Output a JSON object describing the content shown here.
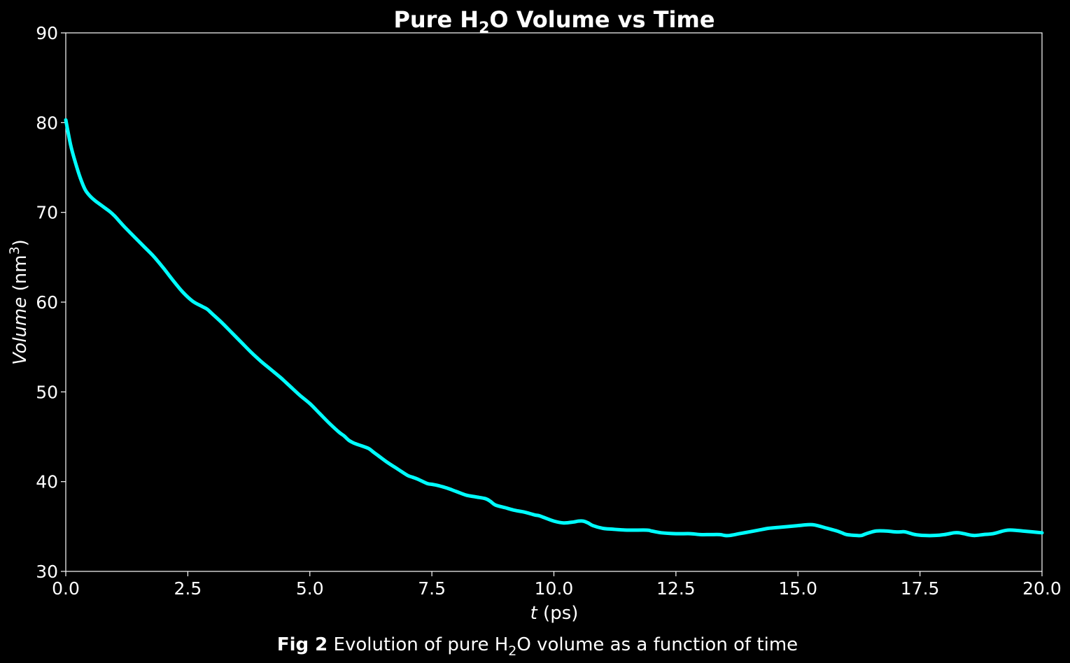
{
  "chart_data": {
    "type": "line",
    "title": {
      "prefix": "Pure H",
      "subscript": "2",
      "suffix": "O Volume vs Time"
    },
    "xlabel": {
      "italic": "t",
      "rest": " (ps)"
    },
    "ylabel": {
      "italic": "Volume",
      "rest_open": " (nm",
      "superscript": "3",
      "rest_close": ")"
    },
    "xlim": [
      0,
      20
    ],
    "ylim": [
      30,
      90
    ],
    "xticks": [
      "0.0",
      "2.5",
      "5.0",
      "7.5",
      "10.0",
      "12.5",
      "15.0",
      "17.5",
      "20.0"
    ],
    "yticks": [
      "30",
      "40",
      "50",
      "60",
      "70",
      "80",
      "90"
    ],
    "grid": false,
    "line_color": "#00ffff",
    "background_color": "#000000",
    "foreground_color": "#ffffff",
    "series": [
      {
        "x": [
          0.0,
          0.1,
          0.2,
          0.3,
          0.4,
          0.5,
          0.6,
          0.7,
          0.8,
          0.9,
          1.0,
          1.1,
          1.2,
          1.4,
          1.6,
          1.8,
          2.0,
          2.2,
          2.4,
          2.6,
          2.8,
          2.9,
          3.0,
          3.2,
          3.4,
          3.6,
          3.8,
          4.0,
          4.2,
          4.4,
          4.5,
          4.6,
          4.8,
          5.0,
          5.2,
          5.4,
          5.6,
          5.7,
          5.8,
          5.9,
          6.0,
          6.2,
          6.3,
          6.4,
          6.6,
          6.8,
          7.0,
          7.1,
          7.2,
          7.4,
          7.5,
          7.6,
          7.8,
          8.0,
          8.2,
          8.4,
          8.6,
          8.7,
          8.8,
          9.0,
          9.2,
          9.4,
          9.6,
          9.7,
          9.8,
          10.0,
          10.2,
          10.4,
          10.5,
          10.6,
          10.7,
          10.8,
          11.0,
          11.2,
          11.5,
          11.9,
          12.0,
          12.2,
          12.5,
          12.8,
          13.0,
          13.2,
          13.4,
          13.5,
          13.6,
          13.8,
          14.0,
          14.2,
          14.4,
          14.6,
          14.8,
          15.0,
          15.2,
          15.3,
          15.4,
          15.6,
          15.8,
          15.9,
          16.0,
          16.2,
          16.3,
          16.4,
          16.6,
          16.8,
          17.0,
          17.1,
          17.2,
          17.4,
          17.6,
          17.8,
          18.0,
          18.2,
          18.3,
          18.4,
          18.6,
          18.8,
          19.0,
          19.2,
          19.3,
          19.4,
          19.6,
          19.8,
          20.0
        ],
        "y": [
          80.3,
          77.5,
          75.5,
          73.8,
          72.5,
          71.8,
          71.3,
          70.9,
          70.5,
          70.1,
          69.6,
          69.0,
          68.4,
          67.3,
          66.2,
          65.1,
          63.8,
          62.4,
          61.1,
          60.1,
          59.5,
          59.2,
          58.7,
          57.7,
          56.6,
          55.5,
          54.4,
          53.4,
          52.5,
          51.6,
          51.1,
          50.6,
          49.6,
          48.7,
          47.6,
          46.5,
          45.5,
          45.1,
          44.6,
          44.3,
          44.1,
          43.7,
          43.3,
          42.9,
          42.1,
          41.4,
          40.7,
          40.5,
          40.3,
          39.8,
          39.7,
          39.6,
          39.3,
          38.9,
          38.5,
          38.3,
          38.1,
          37.8,
          37.4,
          37.1,
          36.8,
          36.6,
          36.3,
          36.2,
          36.0,
          35.6,
          35.4,
          35.5,
          35.6,
          35.6,
          35.4,
          35.1,
          34.8,
          34.7,
          34.6,
          34.6,
          34.5,
          34.3,
          34.2,
          34.2,
          34.1,
          34.1,
          34.1,
          34.0,
          34.0,
          34.2,
          34.4,
          34.6,
          34.8,
          34.9,
          35.0,
          35.1,
          35.2,
          35.2,
          35.1,
          34.8,
          34.5,
          34.3,
          34.1,
          34.0,
          34.0,
          34.2,
          34.5,
          34.5,
          34.4,
          34.4,
          34.4,
          34.1,
          34.0,
          34.0,
          34.1,
          34.3,
          34.3,
          34.2,
          34.0,
          34.1,
          34.2,
          34.5,
          34.6,
          34.6,
          34.5,
          34.4,
          34.3
        ]
      }
    ],
    "caption": {
      "bold": "Fig 2",
      "text_before": " Evolution of pure H",
      "subscript": "2",
      "text_after": "O volume as a function of time"
    }
  }
}
